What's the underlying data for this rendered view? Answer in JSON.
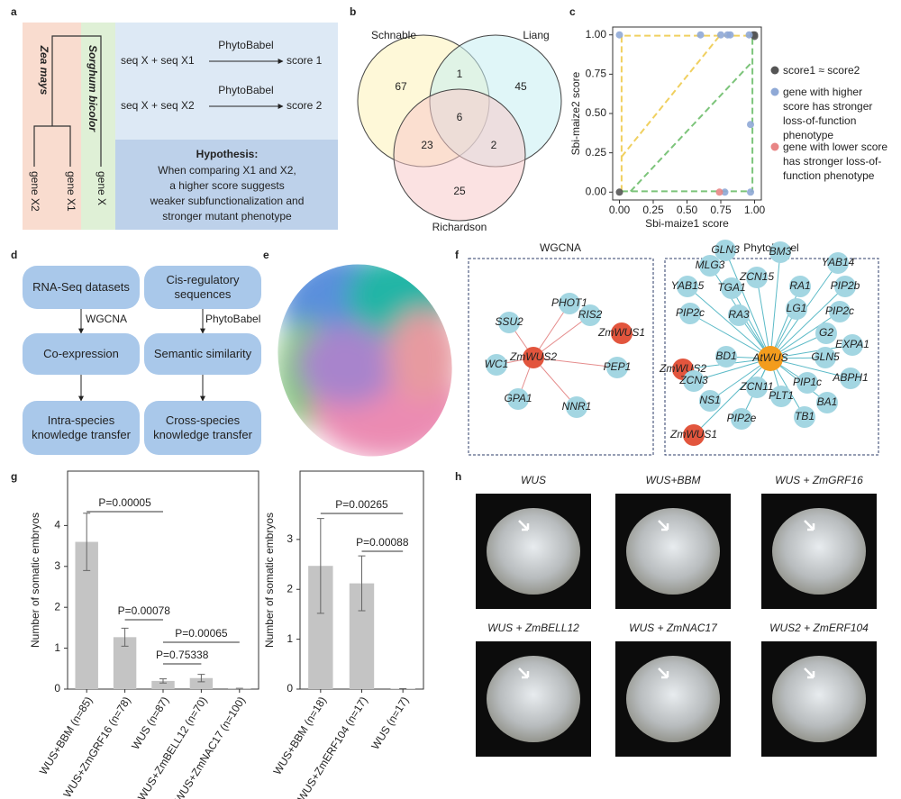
{
  "panel_labels": [
    "a",
    "b",
    "c",
    "d",
    "e",
    "f",
    "g",
    "h"
  ],
  "panel_a": {
    "species": [
      "Zea mays",
      "Sorghum bicolor"
    ],
    "genes": [
      "gene X2",
      "gene X1",
      "gene X"
    ],
    "rows": [
      {
        "input": "seq X + seq X1",
        "method": "PhytoBabel",
        "output": "score 1"
      },
      {
        "input": "seq X + seq X2",
        "method": "PhytoBabel",
        "output": "score 2"
      }
    ],
    "hypothesis_title": "Hypothesis:",
    "hypothesis_lines": [
      "When comparing X1 and X2,",
      "a higher score suggests",
      "weaker subfunctionalization and",
      "stronger mutant phenotype"
    ]
  },
  "panel_b": {
    "sets": [
      "Schnable",
      "Liang",
      "Richardson"
    ],
    "regions": [
      67,
      1,
      45,
      6,
      23,
      2,
      25
    ]
  },
  "chart_data": [
    {
      "type": "scatter",
      "xlabel": "Sbi-maize1 score",
      "ylabel": "Sbi-maize2 score",
      "xlim": [
        -0.05,
        1.05
      ],
      "ylim": [
        -0.05,
        1.05
      ],
      "xticks": [
        {
          "value": 0,
          "label": "0.00"
        },
        {
          "value": 0.25,
          "label": "0.25"
        },
        {
          "value": 0.5,
          "label": "0.50"
        },
        {
          "value": 0.75,
          "label": "0.75"
        },
        {
          "value": 1,
          "label": "1.00"
        }
      ],
      "yticks": [
        {
          "value": 0,
          "label": "0.00"
        },
        {
          "value": 0.25,
          "label": "0.25"
        },
        {
          "value": 0.5,
          "label": "0.50"
        },
        {
          "value": 0.75,
          "label": "0.75"
        },
        {
          "value": 1,
          "label": "1.00"
        }
      ],
      "series": [
        {
          "name": "score1 ≈ score2",
          "color": "#555555",
          "x": [
            1,
            0.99,
            1,
            0
          ],
          "y": [
            1,
            1,
            0.99,
            0
          ]
        },
        {
          "name": "gene with higher score has stronger loss-of-function phenotype",
          "color": "#8fa9d6",
          "x": [
            0,
            0.6,
            0.75,
            0.8,
            0.82,
            0.96,
            0.97,
            0.78,
            0.97
          ],
          "y": [
            1,
            1,
            1,
            1,
            1,
            1,
            0.43,
            0,
            0
          ]
        },
        {
          "name": "gene with lower score has stronger loss-of-function phenotype",
          "color": "#e88585",
          "x": [
            0.74
          ],
          "y": [
            0
          ]
        }
      ]
    },
    {
      "type": "bar",
      "ylabel": "Number of somatic embryos",
      "categories": [
        "WUS+BBM (n=85)",
        "WUS+ZmGRF16 (n=78)",
        "WUS (n=87)",
        "WUS+ZmBELL12 (n=70)",
        "WUS+ZmNAC17 (n=100)"
      ],
      "values": [
        3.6,
        1.27,
        0.2,
        0.27,
        0.02
      ],
      "errors": [
        0.7,
        0.22,
        0.05,
        0.09,
        0
      ],
      "color": "#c4c4c4",
      "ylim": [
        0,
        5.33
      ],
      "yticks": [
        0,
        1,
        2,
        3,
        4
      ],
      "annotations": [
        "P=0.00005",
        "P=0.00078",
        "P=0.00065",
        "P=0.75338"
      ]
    },
    {
      "type": "bar",
      "ylabel": "Number of somatic embryos",
      "categories": [
        "WUS+BBM (n=18)",
        "WUS+ZmERF104 (n=17)",
        "WUS (n=17)"
      ],
      "values": [
        2.47,
        2.12,
        0.01
      ],
      "errors": [
        0.95,
        0.55,
        0
      ],
      "color": "#c4c4c4",
      "ylim": [
        0,
        4.37
      ],
      "yticks": [
        0,
        1,
        2,
        3
      ],
      "annotations": [
        "P=0.00265",
        "P=0.00088"
      ]
    }
  ],
  "panel_d": {
    "left": [
      "RNA-Seq datasets",
      "Co-expression",
      "Intra-species knowledge transfer"
    ],
    "right": [
      "Cis-regulatory sequences",
      "Semantic similarity",
      "Cross-species knowledge transfer"
    ],
    "left_method": "WGCNA",
    "right_method": "PhytoBabel"
  },
  "panel_f": {
    "wgcna": {
      "title": "WGCNA",
      "nodes": [
        "PHOT1",
        "RIS2",
        "SSU2",
        "ZmWUS2",
        "ZmWUS1",
        "WC1",
        "GPA1",
        "NNR1",
        "PEP1"
      ]
    },
    "phytobabel": {
      "title": "PhytoBabel",
      "hub": "AtWUS",
      "nodes": [
        "GLN3",
        "BM3",
        "YAB14",
        "MLG3",
        "ZCN15",
        "RA1",
        "PIP2b",
        "YAB15",
        "TGA1",
        "LG1",
        "PIP2c",
        "RA3",
        "PIP2c",
        "G2",
        "ZmWUS2",
        "EXPA1",
        "BD1",
        "GLN5",
        "ZCN3",
        "ABPH1",
        "ZCN11",
        "PIP1c",
        "PLT1",
        "NS1",
        "BA1",
        "ZmWUS1",
        "PIP2e",
        "TB1"
      ]
    }
  },
  "panel_h": {
    "titles": [
      "WUS",
      "WUS+BBM",
      "WUS + ZmGRF16",
      "WUS + ZmBELL12",
      "WUS + ZmNAC17",
      "WUS2 + ZmERF104"
    ]
  }
}
